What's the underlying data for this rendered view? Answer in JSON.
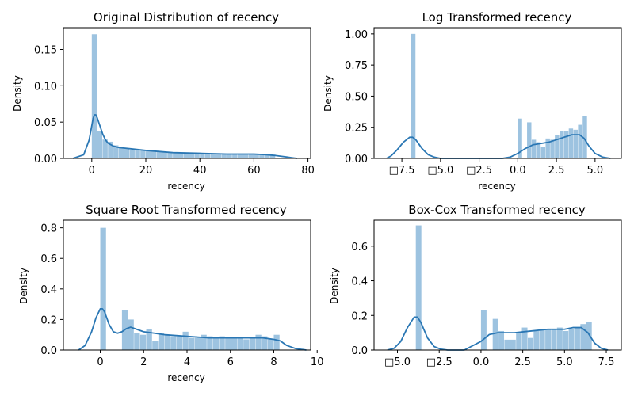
{
  "figure": {
    "panels": [
      {
        "title": "Original Distribution of recency",
        "xlabel": "recency",
        "ylabel": "Density",
        "bar_color": "#9dc3e0",
        "line_color": "#2a77b4"
      },
      {
        "title": "Log Transformed recency",
        "xlabel": "recency",
        "ylabel": "Density",
        "bar_color": "#9dc3e0",
        "line_color": "#2a77b4"
      },
      {
        "title": "Square Root Transformed recency",
        "xlabel": "recency",
        "ylabel": "Density",
        "bar_color": "#9dc3e0",
        "line_color": "#2a77b4"
      },
      {
        "title": "Box-Cox Transformed recency",
        "xlabel": "",
        "ylabel": "Density",
        "bar_color": "#9dc3e0",
        "line_color": "#2a77b4"
      }
    ]
  },
  "chart_data": [
    {
      "type": "histogram+kde",
      "title": "Original Distribution of recency",
      "xlabel": "recency",
      "ylabel": "Density",
      "xlim": [
        -10.5,
        81
      ],
      "ylim": [
        0,
        0.18
      ],
      "xticks": [
        0,
        20,
        40,
        60,
        80
      ],
      "xtick_labels": [
        "0",
        "20",
        "40",
        "60",
        "80"
      ],
      "yticks": [
        0,
        0.05,
        0.1,
        0.15
      ],
      "ytick_labels": [
        "0.00",
        "0.05",
        "0.10",
        "0.15"
      ],
      "bins": [
        {
          "x0": 0,
          "x1": 2,
          "density": 0.171
        },
        {
          "x0": 2,
          "x1": 4,
          "density": 0.038
        },
        {
          "x0": 4,
          "x1": 6,
          "density": 0.026
        },
        {
          "x0": 6,
          "x1": 8,
          "density": 0.023
        },
        {
          "x0": 8,
          "x1": 10,
          "density": 0.018
        },
        {
          "x0": 10,
          "x1": 12,
          "density": 0.015
        },
        {
          "x0": 12,
          "x1": 14,
          "density": 0.013
        },
        {
          "x0": 14,
          "x1": 16,
          "density": 0.012
        },
        {
          "x0": 16,
          "x1": 18,
          "density": 0.011
        },
        {
          "x0": 18,
          "x1": 20,
          "density": 0.011
        },
        {
          "x0": 20,
          "x1": 22,
          "density": 0.01
        },
        {
          "x0": 22,
          "x1": 24,
          "density": 0.01
        },
        {
          "x0": 24,
          "x1": 26,
          "density": 0.009
        },
        {
          "x0": 26,
          "x1": 28,
          "density": 0.009
        },
        {
          "x0": 28,
          "x1": 30,
          "density": 0.008
        },
        {
          "x0": 30,
          "x1": 32,
          "density": 0.008
        },
        {
          "x0": 32,
          "x1": 34,
          "density": 0.008
        },
        {
          "x0": 34,
          "x1": 36,
          "density": 0.007
        },
        {
          "x0": 36,
          "x1": 38,
          "density": 0.007
        },
        {
          "x0": 38,
          "x1": 40,
          "density": 0.007
        },
        {
          "x0": 40,
          "x1": 42,
          "density": 0.007
        },
        {
          "x0": 42,
          "x1": 44,
          "density": 0.007
        },
        {
          "x0": 44,
          "x1": 46,
          "density": 0.006
        },
        {
          "x0": 46,
          "x1": 48,
          "density": 0.006
        },
        {
          "x0": 48,
          "x1": 50,
          "density": 0.006
        },
        {
          "x0": 50,
          "x1": 52,
          "density": 0.006
        },
        {
          "x0": 52,
          "x1": 54,
          "density": 0.006
        },
        {
          "x0": 54,
          "x1": 56,
          "density": 0.006
        },
        {
          "x0": 56,
          "x1": 58,
          "density": 0.006
        },
        {
          "x0": 58,
          "x1": 60,
          "density": 0.006
        },
        {
          "x0": 60,
          "x1": 62,
          "density": 0.006
        },
        {
          "x0": 62,
          "x1": 64,
          "density": 0.006
        },
        {
          "x0": 64,
          "x1": 66,
          "density": 0.005
        },
        {
          "x0": 66,
          "x1": 68,
          "density": 0.005
        }
      ],
      "kde": {
        "x": [
          -7,
          -3,
          -1,
          0,
          0.5,
          1,
          1.5,
          2,
          3,
          4,
          5,
          6,
          8,
          10,
          15,
          20,
          30,
          40,
          50,
          60,
          65,
          68,
          70,
          72,
          74,
          76
        ],
        "y": [
          0.0,
          0.005,
          0.025,
          0.045,
          0.055,
          0.06,
          0.06,
          0.056,
          0.045,
          0.034,
          0.026,
          0.021,
          0.017,
          0.015,
          0.013,
          0.011,
          0.008,
          0.007,
          0.006,
          0.006,
          0.005,
          0.004,
          0.003,
          0.002,
          0.001,
          0.0
        ]
      }
    },
    {
      "type": "histogram+kde",
      "title": "Log Transformed recency",
      "xlabel": "recency",
      "ylabel": "Density",
      "xlim": [
        -9.3,
        6.7
      ],
      "ylim": [
        0,
        1.05
      ],
      "xticks": [
        -7.5,
        -5,
        -2.5,
        0,
        2.5,
        5
      ],
      "xtick_labels": [
        "□7.5",
        "□5.0",
        "□2.5",
        "0.0",
        "2.5",
        "5.0"
      ],
      "yticks": [
        0,
        0.25,
        0.5,
        0.75,
        1.0
      ],
      "ytick_labels": [
        "0.00",
        "0.25",
        "0.50",
        "0.75",
        "1.00"
      ],
      "bins": [
        {
          "x0": -6.9,
          "x1": -6.6,
          "density": 1.0
        },
        {
          "x0": 0.0,
          "x1": 0.3,
          "density": 0.32
        },
        {
          "x0": 0.3,
          "x1": 0.6,
          "density": 0.0
        },
        {
          "x0": 0.6,
          "x1": 0.9,
          "density": 0.29
        },
        {
          "x0": 0.9,
          "x1": 1.2,
          "density": 0.15
        },
        {
          "x0": 1.2,
          "x1": 1.5,
          "density": 0.13
        },
        {
          "x0": 1.5,
          "x1": 1.8,
          "density": 0.09
        },
        {
          "x0": 1.8,
          "x1": 2.1,
          "density": 0.16
        },
        {
          "x0": 2.1,
          "x1": 2.4,
          "density": 0.15
        },
        {
          "x0": 2.4,
          "x1": 2.7,
          "density": 0.19
        },
        {
          "x0": 2.7,
          "x1": 3.0,
          "density": 0.22
        },
        {
          "x0": 3.0,
          "x1": 3.3,
          "density": 0.22
        },
        {
          "x0": 3.3,
          "x1": 3.6,
          "density": 0.24
        },
        {
          "x0": 3.6,
          "x1": 3.9,
          "density": 0.23
        },
        {
          "x0": 3.9,
          "x1": 4.2,
          "density": 0.27
        },
        {
          "x0": 4.2,
          "x1": 4.5,
          "density": 0.34
        }
      ],
      "kde": {
        "x": [
          -8.5,
          -8.2,
          -7.8,
          -7.4,
          -7.0,
          -6.8,
          -6.6,
          -6.2,
          -5.8,
          -5.4,
          -5.0,
          -3.0,
          -1.0,
          -0.5,
          0.0,
          0.5,
          1.0,
          1.5,
          2.0,
          2.5,
          3.0,
          3.5,
          4.0,
          4.3,
          4.6,
          5.0,
          5.5,
          6.0
        ],
        "y": [
          0.0,
          0.02,
          0.07,
          0.13,
          0.17,
          0.17,
          0.15,
          0.08,
          0.03,
          0.01,
          0.0,
          0.0,
          0.0,
          0.01,
          0.04,
          0.08,
          0.11,
          0.12,
          0.13,
          0.15,
          0.17,
          0.19,
          0.19,
          0.16,
          0.1,
          0.04,
          0.01,
          0.0
        ]
      }
    },
    {
      "type": "histogram+kde",
      "title": "Square Root Transformed recency",
      "xlabel": "recency",
      "ylabel": "Density",
      "xlim": [
        -1.7,
        9.7
      ],
      "ylim": [
        0,
        0.85
      ],
      "xticks": [
        0,
        2,
        4,
        6,
        8,
        10
      ],
      "xtick_labels": [
        "0",
        "2",
        "4",
        "6",
        "8",
        "10"
      ],
      "yticks": [
        0,
        0.2,
        0.4,
        0.6,
        0.8
      ],
      "ytick_labels": [
        "0.0",
        "0.2",
        "0.4",
        "0.6",
        "0.8"
      ],
      "bins": [
        {
          "x0": 0.0,
          "x1": 0.28,
          "density": 0.8
        },
        {
          "x0": 0.28,
          "x1": 0.56,
          "density": 0.0
        },
        {
          "x0": 0.56,
          "x1": 0.84,
          "density": 0.0
        },
        {
          "x0": 0.84,
          "x1": 1.0,
          "density": 0.0
        },
        {
          "x0": 1.0,
          "x1": 1.28,
          "density": 0.26
        },
        {
          "x0": 1.28,
          "x1": 1.56,
          "density": 0.2
        },
        {
          "x0": 1.56,
          "x1": 1.84,
          "density": 0.11
        },
        {
          "x0": 1.84,
          "x1": 2.12,
          "density": 0.1
        },
        {
          "x0": 2.12,
          "x1": 2.4,
          "density": 0.14
        },
        {
          "x0": 2.4,
          "x1": 2.68,
          "density": 0.06
        },
        {
          "x0": 2.68,
          "x1": 2.96,
          "density": 0.11
        },
        {
          "x0": 2.96,
          "x1": 3.24,
          "density": 0.1
        },
        {
          "x0": 3.24,
          "x1": 3.52,
          "density": 0.09
        },
        {
          "x0": 3.52,
          "x1": 3.8,
          "density": 0.09
        },
        {
          "x0": 3.8,
          "x1": 4.08,
          "density": 0.12
        },
        {
          "x0": 4.08,
          "x1": 4.36,
          "density": 0.08
        },
        {
          "x0": 4.36,
          "x1": 4.64,
          "density": 0.08
        },
        {
          "x0": 4.64,
          "x1": 4.92,
          "density": 0.1
        },
        {
          "x0": 4.92,
          "x1": 5.2,
          "density": 0.09
        },
        {
          "x0": 5.2,
          "x1": 5.48,
          "density": 0.08
        },
        {
          "x0": 5.48,
          "x1": 5.76,
          "density": 0.09
        },
        {
          "x0": 5.76,
          "x1": 6.04,
          "density": 0.08
        },
        {
          "x0": 6.04,
          "x1": 6.32,
          "density": 0.08
        },
        {
          "x0": 6.32,
          "x1": 6.6,
          "density": 0.08
        },
        {
          "x0": 6.6,
          "x1": 6.88,
          "density": 0.07
        },
        {
          "x0": 6.88,
          "x1": 7.16,
          "density": 0.08
        },
        {
          "x0": 7.16,
          "x1": 7.44,
          "density": 0.1
        },
        {
          "x0": 7.44,
          "x1": 7.72,
          "density": 0.09
        },
        {
          "x0": 7.72,
          "x1": 8.0,
          "density": 0.07
        },
        {
          "x0": 8.0,
          "x1": 8.28,
          "density": 0.1
        }
      ],
      "kde": {
        "x": [
          -1.0,
          -0.7,
          -0.4,
          -0.2,
          0.0,
          0.1,
          0.2,
          0.4,
          0.6,
          0.8,
          1.0,
          1.2,
          1.4,
          1.6,
          2.0,
          2.5,
          3.0,
          4.0,
          5.0,
          6.0,
          7.0,
          7.5,
          8.0,
          8.3,
          8.6,
          9.0,
          9.5
        ],
        "y": [
          0.0,
          0.03,
          0.12,
          0.21,
          0.27,
          0.27,
          0.25,
          0.17,
          0.12,
          0.11,
          0.12,
          0.14,
          0.15,
          0.14,
          0.12,
          0.11,
          0.1,
          0.09,
          0.08,
          0.08,
          0.08,
          0.08,
          0.07,
          0.06,
          0.03,
          0.01,
          0.0
        ]
      }
    },
    {
      "type": "histogram+kde",
      "title": "Box-Cox Transformed recency",
      "xlabel": "",
      "ylabel": "Density",
      "xlim": [
        -6.4,
        8.4
      ],
      "ylim": [
        0,
        0.75
      ],
      "xticks": [
        -5,
        -2.5,
        0,
        2.5,
        5,
        7.5
      ],
      "xtick_labels": [
        "□5.0",
        "□2.5",
        "0.0",
        "2.5",
        "5.0",
        "7.5"
      ],
      "yticks": [
        0,
        0.2,
        0.4,
        0.6
      ],
      "ytick_labels": [
        "0.0",
        "0.2",
        "0.4",
        "0.6"
      ],
      "bins": [
        {
          "x0": -3.9,
          "x1": -3.55,
          "density": 0.72
        },
        {
          "x0": 0.0,
          "x1": 0.35,
          "density": 0.23
        },
        {
          "x0": 0.35,
          "x1": 0.7,
          "density": 0.0
        },
        {
          "x0": 0.7,
          "x1": 1.05,
          "density": 0.18
        },
        {
          "x0": 1.05,
          "x1": 1.4,
          "density": 0.11
        },
        {
          "x0": 1.4,
          "x1": 1.75,
          "density": 0.06
        },
        {
          "x0": 1.75,
          "x1": 2.1,
          "density": 0.06
        },
        {
          "x0": 2.1,
          "x1": 2.45,
          "density": 0.1
        },
        {
          "x0": 2.45,
          "x1": 2.8,
          "density": 0.13
        },
        {
          "x0": 2.8,
          "x1": 3.15,
          "density": 0.07
        },
        {
          "x0": 3.15,
          "x1": 3.5,
          "density": 0.11
        },
        {
          "x0": 3.5,
          "x1": 3.85,
          "density": 0.12
        },
        {
          "x0": 3.85,
          "x1": 4.2,
          "density": 0.12
        },
        {
          "x0": 4.2,
          "x1": 4.55,
          "density": 0.12
        },
        {
          "x0": 4.55,
          "x1": 4.9,
          "density": 0.13
        },
        {
          "x0": 4.9,
          "x1": 5.25,
          "density": 0.11
        },
        {
          "x0": 5.25,
          "x1": 5.6,
          "density": 0.12
        },
        {
          "x0": 5.6,
          "x1": 5.95,
          "density": 0.13
        },
        {
          "x0": 5.95,
          "x1": 6.3,
          "density": 0.15
        },
        {
          "x0": 6.3,
          "x1": 6.65,
          "density": 0.16
        }
      ],
      "kde": {
        "x": [
          -5.6,
          -5.2,
          -4.8,
          -4.4,
          -4.0,
          -3.8,
          -3.6,
          -3.2,
          -2.8,
          -2.4,
          -2.0,
          -1.0,
          0.0,
          0.5,
          1.0,
          2.0,
          3.0,
          4.0,
          5.0,
          5.5,
          6.0,
          6.4,
          6.8,
          7.2,
          7.6
        ],
        "y": [
          0.0,
          0.01,
          0.05,
          0.13,
          0.19,
          0.19,
          0.16,
          0.07,
          0.02,
          0.005,
          0.0,
          0.0,
          0.05,
          0.09,
          0.1,
          0.1,
          0.11,
          0.12,
          0.12,
          0.13,
          0.13,
          0.1,
          0.04,
          0.01,
          0.0
        ]
      }
    }
  ]
}
